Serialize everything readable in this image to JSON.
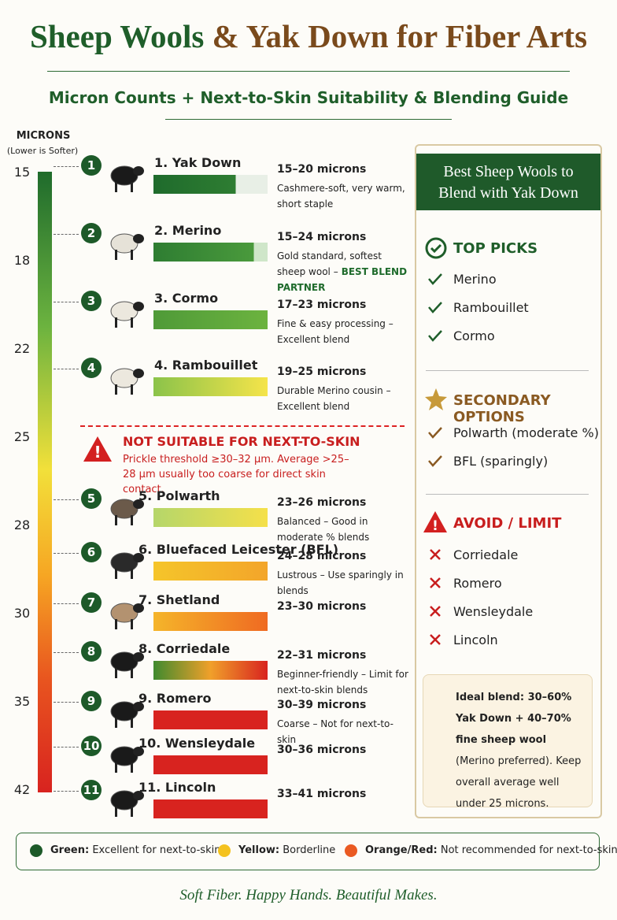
{
  "header": {
    "title_green": "Sheep Wools",
    "title_brown": "& Yak Down for Fiber Arts",
    "subtitle": "Micron Counts + Next-to-Skin Suitability & Blending Guide"
  },
  "scale": {
    "label": "MICRONS",
    "note": "(Lower is Softer)",
    "ticks": [
      15,
      18,
      22,
      25,
      28,
      30,
      35,
      42
    ]
  },
  "fibers": [
    {
      "number": 1,
      "name": "1. Yak Down",
      "range": "15–20 microns",
      "note": "Cashmere-soft, very warm, short staple"
    },
    {
      "number": 2,
      "name": "2. Merino",
      "range": "15–24 microns",
      "note": "Gold standard, softest sheep wool –",
      "highlight": "BEST BLEND PARTNER"
    },
    {
      "number": 3,
      "name": "3. Cormo",
      "range": "17–23 microns",
      "note": "Fine & easy processing – Excellent blend"
    },
    {
      "number": 4,
      "name": "4. Rambouillet",
      "range": "19–25 microns",
      "note": "Durable Merino cousin – Excellent blend"
    },
    {
      "number": 5,
      "name": "5. Polwarth",
      "range": "23–26 microns",
      "note": "Balanced – Good in moderate % blends"
    },
    {
      "number": 6,
      "name": "6. Bluefaced Leicester (BFL)",
      "range": "24–28 microns",
      "note": "Lustrous – Use sparingly in blends"
    },
    {
      "number": 7,
      "name": "7. Shetland",
      "range": "23–30 microns"
    },
    {
      "number": 8,
      "name": "8. Corriedale",
      "range": "22–31 microns",
      "note": "Beginner-friendly – Limit for next-to-skin blends"
    },
    {
      "number": 9,
      "name": "9. Romero",
      "range": "30–39 microns",
      "note": "Coarse – Not for next-to-skin"
    },
    {
      "number": 10,
      "name": "10. Wensleydale",
      "range": "30–36 microns"
    },
    {
      "number": 11,
      "name": "11. Lincoln",
      "range": "33–41 microns"
    }
  ],
  "warning": {
    "title": "NOT SUITABLE FOR NEXT-TO-SKIN",
    "text": "Prickle threshold ≥30–32 µm. Average >25–28 µm usually too coarse for direct skin contact."
  },
  "panel": {
    "title": "Best Sheep Wools to Blend with Yak Down",
    "top_picks": {
      "heading": "TOP PICKS",
      "items": [
        "Merino",
        "Rambouillet",
        "Cormo"
      ]
    },
    "secondary": {
      "heading": "SECONDARY OPTIONS",
      "items": [
        "Polwarth (moderate %)",
        "BFL (sparingly)"
      ]
    },
    "avoid": {
      "heading": "AVOID / LIMIT",
      "items": [
        "Corriedale",
        "Romero",
        "Wensleydale",
        "Lincoln"
      ]
    },
    "ideal": {
      "bold": "Ideal blend: 30–60% Yak Down + 40–70% fine sheep wool",
      "rest": "(Merino preferred). Keep overall average well under 25 microns."
    }
  },
  "legend": [
    {
      "label": "Green:",
      "text": "Excellent for next-to-skin"
    },
    {
      "label": "Yellow:",
      "text": "Borderline"
    },
    {
      "label": "Orange/Red:",
      "text": "Not recommended for next-to-skin"
    }
  ],
  "footer": "Soft Fiber. Happy Hands. Beautiful Makes."
}
